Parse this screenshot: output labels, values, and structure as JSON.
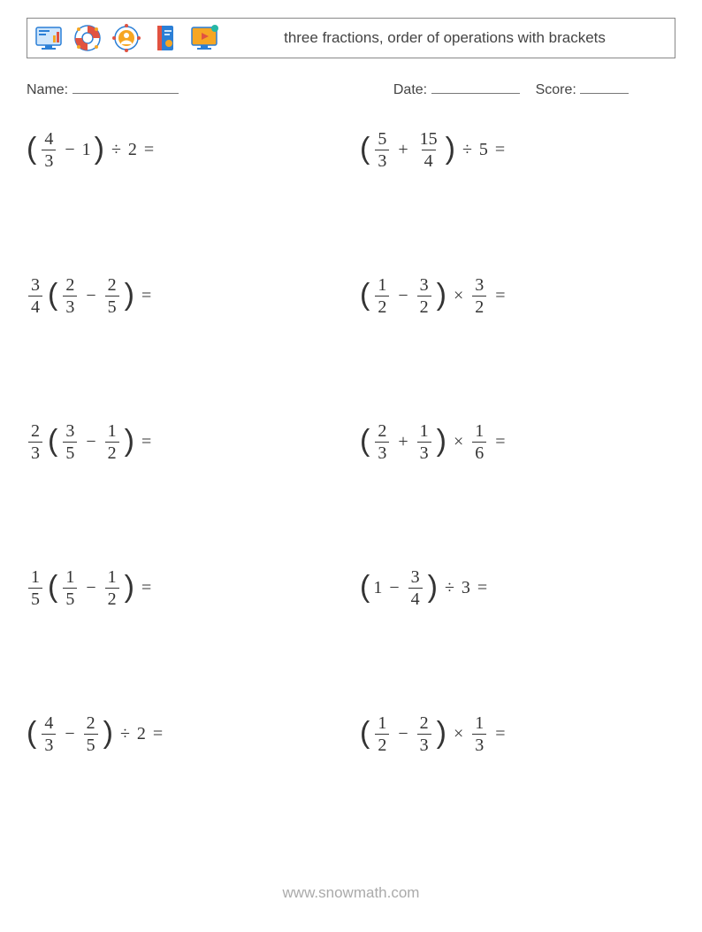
{
  "colors": {
    "text": "#333333",
    "muted": "#444444",
    "border": "#888888",
    "footer": "#aaaaaa",
    "background": "#ffffff",
    "icon_blue": "#2b7fd6",
    "icon_orange": "#f6a623",
    "icon_red": "#e15241",
    "icon_teal": "#25b7a5",
    "icon_light": "#cfe6fb"
  },
  "header": {
    "title": "three fractions, order of operations with brackets"
  },
  "meta": {
    "name_label": "Name:",
    "date_label": "Date:",
    "score_label": "Score:"
  },
  "problems": [
    {
      "tokens": [
        {
          "t": "lparen"
        },
        {
          "t": "frac",
          "n": "4",
          "d": "3"
        },
        {
          "t": "op",
          "v": "−"
        },
        {
          "t": "int",
          "v": "1"
        },
        {
          "t": "rparen"
        },
        {
          "t": "op",
          "v": "÷"
        },
        {
          "t": "int",
          "v": "2"
        },
        {
          "t": "op",
          "v": "="
        }
      ]
    },
    {
      "tokens": [
        {
          "t": "lparen"
        },
        {
          "t": "frac",
          "n": "5",
          "d": "3"
        },
        {
          "t": "op",
          "v": "+"
        },
        {
          "t": "frac",
          "n": "15",
          "d": "4"
        },
        {
          "t": "rparen"
        },
        {
          "t": "op",
          "v": "÷"
        },
        {
          "t": "int",
          "v": "5"
        },
        {
          "t": "op",
          "v": "="
        }
      ]
    },
    {
      "tokens": [
        {
          "t": "frac",
          "n": "3",
          "d": "4"
        },
        {
          "t": "lparen"
        },
        {
          "t": "frac",
          "n": "2",
          "d": "3"
        },
        {
          "t": "op",
          "v": "−"
        },
        {
          "t": "frac",
          "n": "2",
          "d": "5"
        },
        {
          "t": "rparen"
        },
        {
          "t": "op",
          "v": "="
        }
      ]
    },
    {
      "tokens": [
        {
          "t": "lparen"
        },
        {
          "t": "frac",
          "n": "1",
          "d": "2"
        },
        {
          "t": "op",
          "v": "−"
        },
        {
          "t": "frac",
          "n": "3",
          "d": "2"
        },
        {
          "t": "rparen"
        },
        {
          "t": "op",
          "v": "×"
        },
        {
          "t": "frac",
          "n": "3",
          "d": "2"
        },
        {
          "t": "op",
          "v": "="
        }
      ]
    },
    {
      "tokens": [
        {
          "t": "frac",
          "n": "2",
          "d": "3"
        },
        {
          "t": "lparen"
        },
        {
          "t": "frac",
          "n": "3",
          "d": "5"
        },
        {
          "t": "op",
          "v": "−"
        },
        {
          "t": "frac",
          "n": "1",
          "d": "2"
        },
        {
          "t": "rparen"
        },
        {
          "t": "op",
          "v": "="
        }
      ]
    },
    {
      "tokens": [
        {
          "t": "lparen"
        },
        {
          "t": "frac",
          "n": "2",
          "d": "3"
        },
        {
          "t": "op",
          "v": "+"
        },
        {
          "t": "frac",
          "n": "1",
          "d": "3"
        },
        {
          "t": "rparen"
        },
        {
          "t": "op",
          "v": "×"
        },
        {
          "t": "frac",
          "n": "1",
          "d": "6"
        },
        {
          "t": "op",
          "v": "="
        }
      ]
    },
    {
      "tokens": [
        {
          "t": "frac",
          "n": "1",
          "d": "5"
        },
        {
          "t": "lparen"
        },
        {
          "t": "frac",
          "n": "1",
          "d": "5"
        },
        {
          "t": "op",
          "v": "−"
        },
        {
          "t": "frac",
          "n": "1",
          "d": "2"
        },
        {
          "t": "rparen"
        },
        {
          "t": "op",
          "v": "="
        }
      ]
    },
    {
      "tokens": [
        {
          "t": "lparen"
        },
        {
          "t": "int",
          "v": "1"
        },
        {
          "t": "op",
          "v": "−"
        },
        {
          "t": "frac",
          "n": "3",
          "d": "4"
        },
        {
          "t": "rparen"
        },
        {
          "t": "op",
          "v": "÷"
        },
        {
          "t": "int",
          "v": "3"
        },
        {
          "t": "op",
          "v": "="
        }
      ]
    },
    {
      "tokens": [
        {
          "t": "lparen"
        },
        {
          "t": "frac",
          "n": "4",
          "d": "3"
        },
        {
          "t": "op",
          "v": "−"
        },
        {
          "t": "frac",
          "n": "2",
          "d": "5"
        },
        {
          "t": "rparen"
        },
        {
          "t": "op",
          "v": "÷"
        },
        {
          "t": "int",
          "v": "2"
        },
        {
          "t": "op",
          "v": "="
        }
      ]
    },
    {
      "tokens": [
        {
          "t": "lparen"
        },
        {
          "t": "frac",
          "n": "1",
          "d": "2"
        },
        {
          "t": "op",
          "v": "−"
        },
        {
          "t": "frac",
          "n": "2",
          "d": "3"
        },
        {
          "t": "rparen"
        },
        {
          "t": "op",
          "v": "×"
        },
        {
          "t": "frac",
          "n": "1",
          "d": "3"
        },
        {
          "t": "op",
          "v": "="
        }
      ]
    }
  ],
  "footer": {
    "text": "www.snowmath.com"
  }
}
